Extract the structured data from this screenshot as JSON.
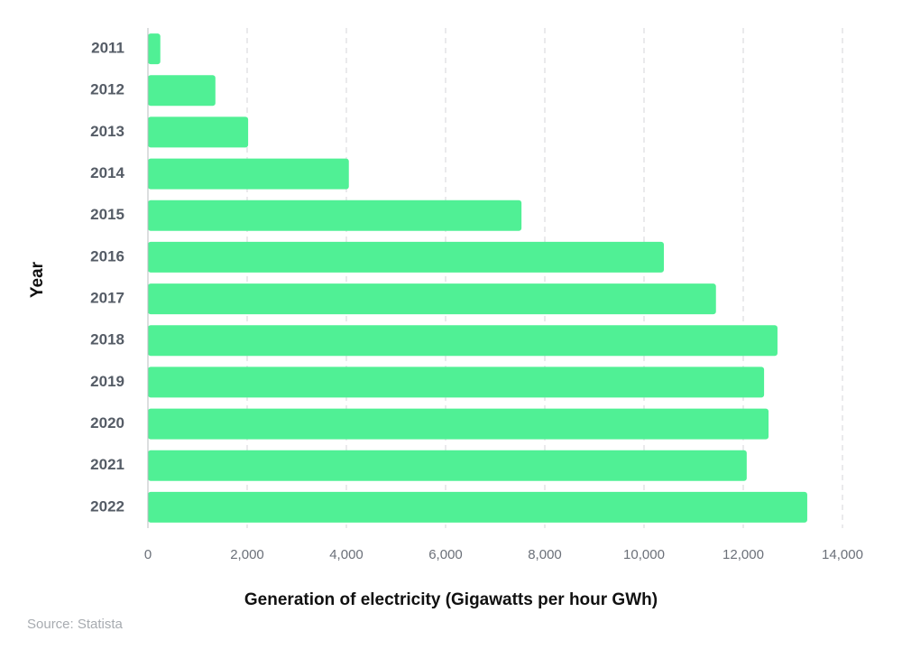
{
  "chart_data": {
    "type": "bar",
    "orientation": "horizontal",
    "x_label": "Generation of electricity (Gigawatts per hour GWh)",
    "y_label": "Year",
    "source": "Source: Statista",
    "categories": [
      "2011",
      "2012",
      "2013",
      "2014",
      "2015",
      "2016",
      "2017",
      "2018",
      "2019",
      "2020",
      "2021",
      "2022"
    ],
    "values": [
      250,
      1360,
      2020,
      4050,
      7530,
      10400,
      11450,
      12690,
      12420,
      12510,
      12070,
      13290
    ],
    "color": "#50f095",
    "xlim": [
      0,
      14000
    ],
    "xticks": [
      0,
      {
        "value": 2000,
        "label": "2,000"
      },
      {
        "value": 4000,
        "label": "4,000"
      },
      {
        "value": 6000,
        "label": "6,000"
      },
      {
        "value": 8000,
        "label": "8,000"
      },
      {
        "value": 10000,
        "label": "10,000"
      },
      {
        "value": 12000,
        "label": "12,000"
      },
      {
        "value": 14000,
        "label": "14,000"
      }
    ],
    "grid": true
  }
}
